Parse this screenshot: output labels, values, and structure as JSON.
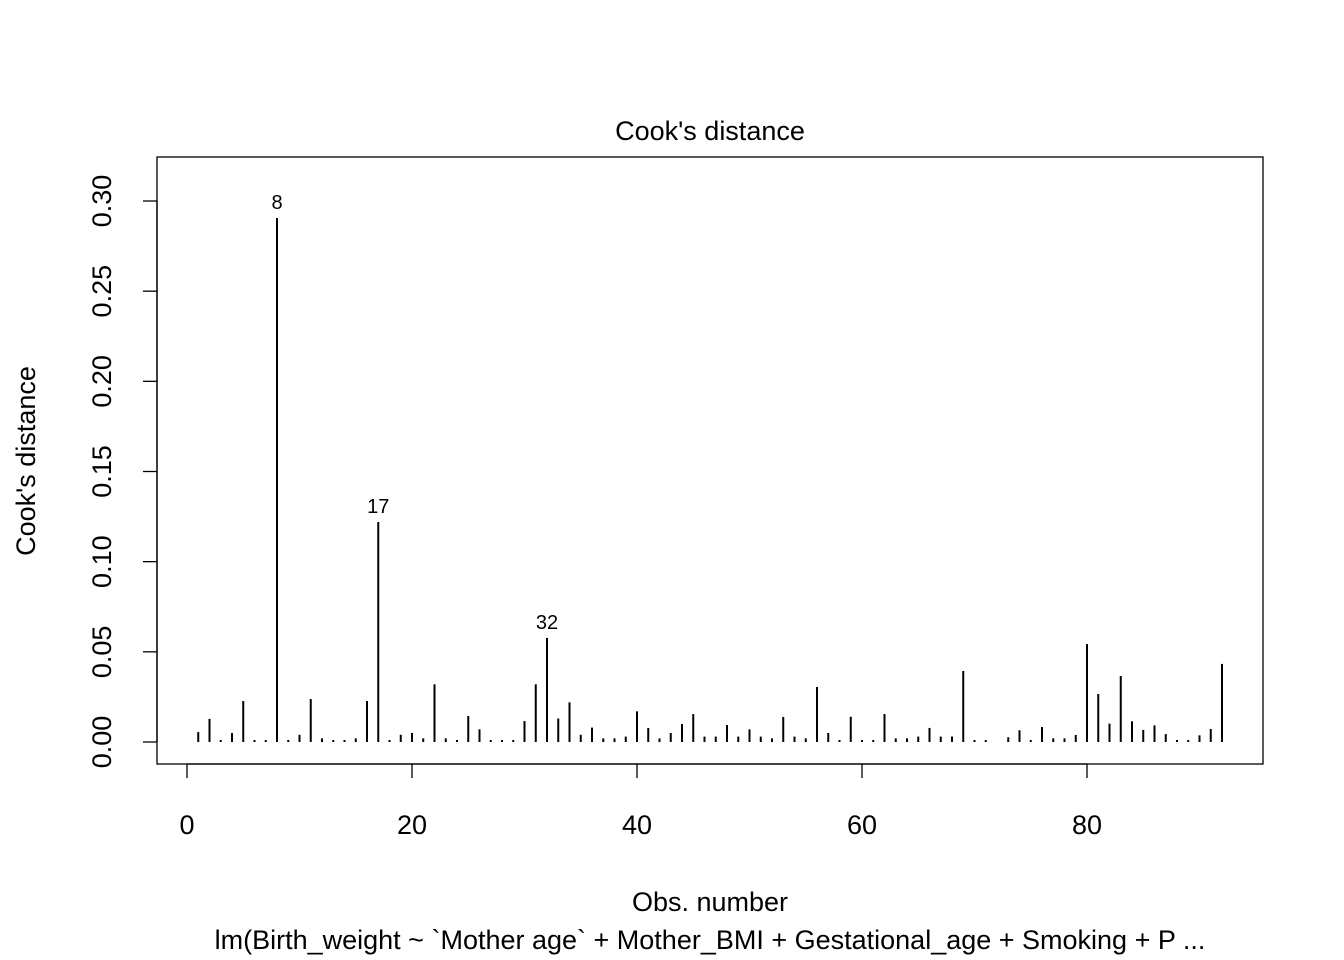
{
  "chart_data": {
    "type": "bar",
    "style": "spikes",
    "title": "Cook's distance",
    "xlabel": "Obs. number",
    "ylabel": "Cook's distance",
    "subtitle": "lm(Birth_weight ~ `Mother age` + Mother_BMI + Gestational_age + Smoking + P ...",
    "xlim": [
      0,
      92
    ],
    "ylim": [
      0,
      0.31
    ],
    "x_ticks": [
      0,
      20,
      40,
      60,
      80
    ],
    "x_tick_labels": [
      "0",
      "20",
      "40",
      "60",
      "80"
    ],
    "y_ticks": [
      0,
      0.05,
      0.1,
      0.15,
      0.2,
      0.25,
      0.3
    ],
    "y_tick_labels": [
      "0.00",
      "0.05",
      "0.10",
      "0.15",
      "0.20",
      "0.25",
      "0.30"
    ],
    "labeled_points": [
      {
        "x": 8,
        "label": "8"
      },
      {
        "x": 17,
        "label": "17"
      },
      {
        "x": 32,
        "label": "32"
      }
    ],
    "values": [
      0.0055,
      0.0128,
      0.001,
      0.005,
      0.0227,
      0.001,
      0.001,
      0.2906,
      0.001,
      0.004,
      0.0238,
      0.002,
      0.001,
      0.001,
      0.002,
      0.0227,
      0.122,
      0.001,
      0.004,
      0.005,
      0.002,
      0.032,
      0.002,
      0.001,
      0.0144,
      0.007,
      0.001,
      0.001,
      0.001,
      0.0116,
      0.032,
      0.0577,
      0.013,
      0.022,
      0.004,
      0.008,
      0.002,
      0.002,
      0.003,
      0.017,
      0.0078,
      0.002,
      0.005,
      0.01,
      0.0155,
      0.003,
      0.003,
      0.0094,
      0.003,
      0.007,
      0.003,
      0.002,
      0.0139,
      0.003,
      0.002,
      0.0305,
      0.005,
      0.001,
      0.014,
      0.001,
      0.001,
      0.0155,
      0.002,
      0.002,
      0.003,
      0.0078,
      0.003,
      0.003,
      0.0394,
      0.001,
      0.001,
      null,
      0.0026,
      0.0065,
      0.001,
      0.0083,
      0.002,
      0.002,
      0.0039,
      0.0543,
      0.0266,
      0.0102,
      0.0366,
      0.0115,
      0.0067,
      0.0092,
      0.0044,
      0.001,
      0.001,
      0.0037,
      0.0072,
      0.0433
    ]
  }
}
